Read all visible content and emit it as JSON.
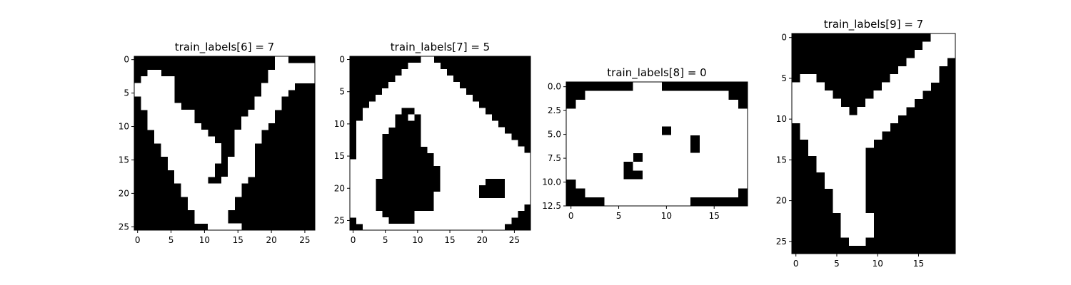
{
  "chart_data": [
    {
      "type": "heatmap",
      "title": "train_labels[6] = 7",
      "colormap": "gray",
      "x_ticks": [
        "0",
        "5",
        "10",
        "15",
        "20",
        "25"
      ],
      "y_ticks": [
        "0",
        "5",
        "10",
        "15",
        "20",
        "25"
      ],
      "x_values": [
        0,
        5,
        10,
        15,
        20,
        25
      ],
      "y_values": [
        0,
        5,
        10,
        15,
        20,
        25
      ],
      "xlim": [
        -0.5,
        26.5
      ],
      "ylim": [
        25.5,
        -0.5
      ],
      "pixels": [
        "000000000000000000000110000",
        "000000000000000000000111111",
        "001100000000000000001111111",
        "011111000000000000001111111",
        "111111000000000000011111000",
        "111111000000000000011110000",
        "011111000000000000111100000",
        "011111100000000000111100000",
        "001111111000000001111000000",
        "001111111000000011111000000",
        "001111111100000011110000000",
        "000111111110000111100000000",
        "000111111111000111100000000",
        "000011111111100111000000000",
        "000011111111100111000000000",
        "000001111111101111000000000",
        "000001111111001111000000000",
        "000000111111001111000000000",
        "000000111110011110000000000",
        "000000011111111100000000000",
        "000000011111111100000000000",
        "000000001111111000000000000",
        "000000001111111000000000000",
        "000000000111110000000000000",
        "000000000111110000000000000",
        "000000000001111100000000000"
      ]
    },
    {
      "type": "heatmap",
      "title": "train_labels[7] = 5",
      "colormap": "gray",
      "x_ticks": [
        "0",
        "5",
        "10",
        "15",
        "20",
        "25"
      ],
      "y_ticks": [
        "0",
        "5",
        "10",
        "15",
        "20",
        "25"
      ],
      "x_values": [
        0,
        5,
        10,
        15,
        20,
        25
      ],
      "y_values": [
        0,
        5,
        10,
        15,
        20,
        25
      ],
      "xlim": [
        -0.5,
        27.5
      ],
      "ylim": [
        26.5,
        -0.5
      ],
      "pixels": [
        "0000000000011000000000000000",
        "0000000001111100000000000000",
        "0000000011111110000000000000",
        "0000000111111111000000000000",
        "0000001111111111100000000000",
        "0000011111111111110000000000",
        "0000111111111111111000000000",
        "0001111111111111111100000000",
        "0011111100111111111110000000",
        "0011111001011111111111000000",
        "0111111000011111111111100000",
        "0111110000011111111111110000",
        "0111100000011111111111111000",
        "0111100000011111111111111100",
        "0111100000001111111111111110",
        "0111100000000111111111111111",
        "1111100000000111111111111111",
        "1111100000000011111111111111",
        "1111100000000011111111111111",
        "1111000000000011111110001111",
        "1111000000000011111100001111",
        "1111000000000111111100001111",
        "1111000000000111111111111111",
        "1111000000000111111111111110",
        "1111100000111111111111111100",
        "0111110000111111111111111000",
        "0011111111111111111111110000"
      ]
    },
    {
      "type": "heatmap",
      "title": "train_labels[8] = 0",
      "colormap": "gray",
      "x_ticks": [
        "0",
        "5",
        "10",
        "15"
      ],
      "y_ticks": [
        "0.0",
        "2.5",
        "5.0",
        "7.5",
        "10.0",
        "12.5"
      ],
      "x_values": [
        0,
        5,
        10,
        15
      ],
      "y_values": [
        0,
        2.5,
        5,
        7.5,
        10,
        12.5
      ],
      "xlim": [
        -0.5,
        18.5
      ],
      "ylim": [
        12.5,
        -0.5
      ],
      "pixels": [
        "0000000111000000000",
        "0011111111111111100",
        "0111111111111111110",
        "1111111111111111111",
        "1111111111111111111",
        "1111111111011111111",
        "1111111111111011111",
        "1111111111111011111",
        "1111111011111111111",
        "1111110111111111111",
        "1111110011111111111",
        "0111111111111111111",
        "0011111111111111110",
        "0000111111111000000"
      ]
    },
    {
      "type": "heatmap",
      "title": "train_labels[9] = 7",
      "colormap": "gray",
      "x_ticks": [
        "0",
        "5",
        "10",
        "15"
      ],
      "y_ticks": [
        "0",
        "5",
        "10",
        "15",
        "20",
        "25"
      ],
      "x_values": [
        0,
        5,
        10,
        15
      ],
      "y_values": [
        0,
        5,
        10,
        15,
        20,
        25
      ],
      "xlim": [
        -0.5,
        19.5
      ],
      "ylim": [
        26.5,
        -0.5
      ],
      "pixels": [
        "00000000000000000111",
        "00000000000000001111",
        "00000000000000011111",
        "00000000000000111110",
        "00000000000001111100",
        "01100000000011111100",
        "11110000000111111000",
        "11111000001111110000",
        "11111100011111100000",
        "11111110111111000000",
        "11111111111110000000",
        "01111111111100000000",
        "01111111111000000000",
        "00111111110000000000",
        "00111111100000000000",
        "00011111100000000000",
        "00011111100000000000",
        "00001111100000000000",
        "00001111100000000000",
        "00000111100000000000",
        "00000111100000000000",
        "00000111100000000000",
        "00000011110000000000",
        "00000011110000000000",
        "00000011110000000000",
        "00000001100000000000",
        "00000000000000000000"
      ]
    }
  ]
}
